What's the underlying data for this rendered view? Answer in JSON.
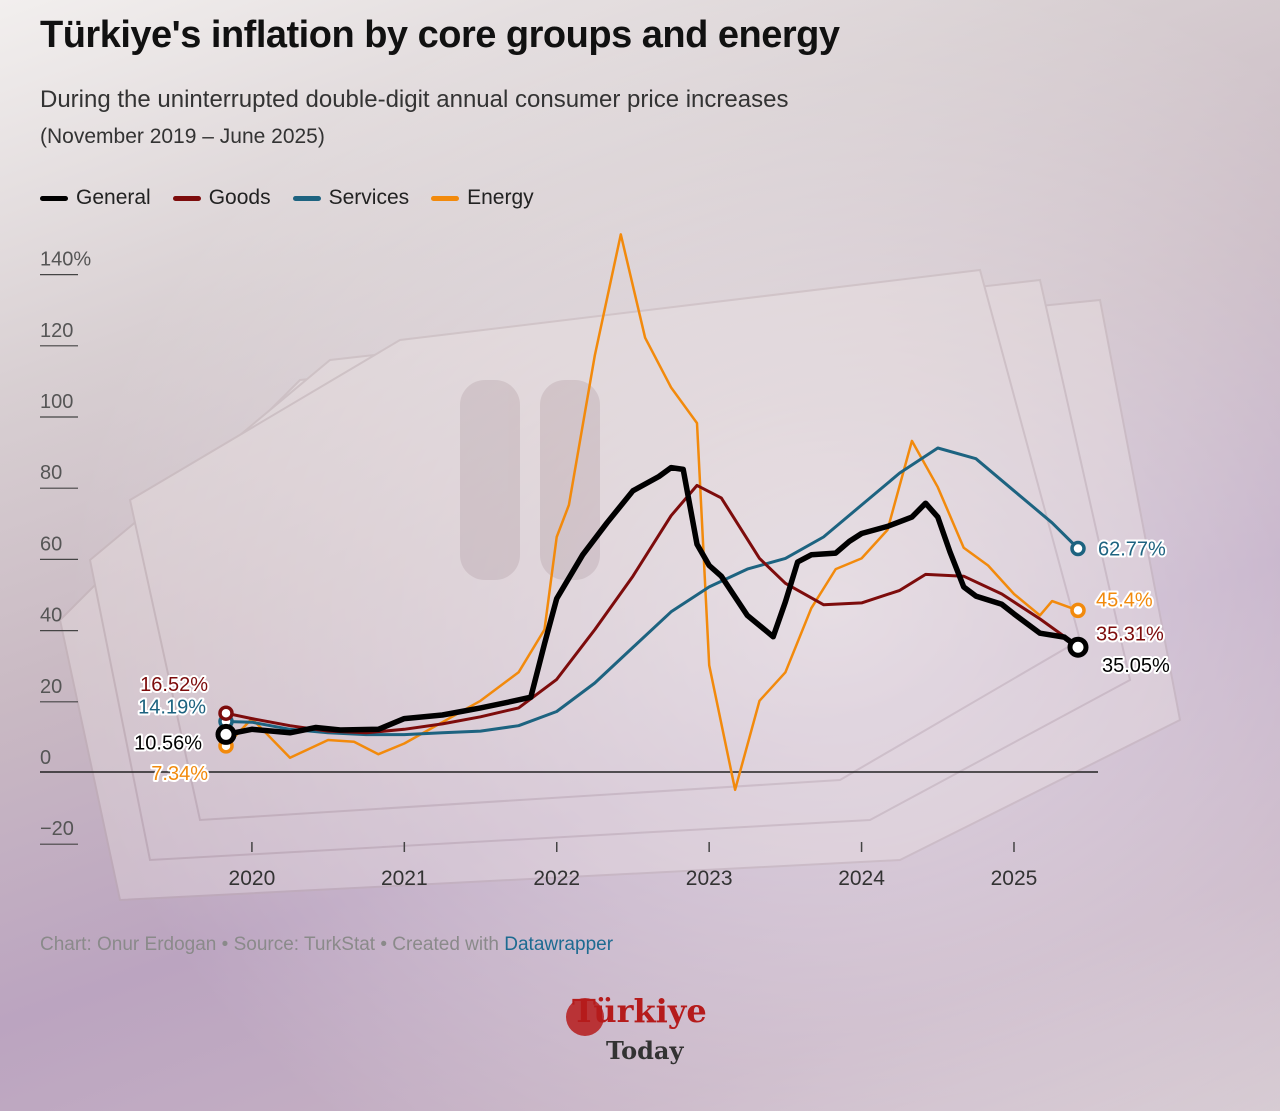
{
  "header": {
    "title": "Türkiye's inflation by core groups and energy",
    "subtitle": "During the uninterrupted double-digit annual consumer price increases",
    "subtitle2": "(November 2019 – June 2025)"
  },
  "legend": [
    {
      "label": "General",
      "color": "#000000"
    },
    {
      "label": "Goods",
      "color": "#7d0c0c"
    },
    {
      "label": "Services",
      "color": "#1d6380"
    },
    {
      "label": "Energy",
      "color": "#f28a0c"
    }
  ],
  "footer": {
    "credit": "Chart: Onur Erdogan • Source: TurkStat • Created with ",
    "link": "Datawrapper"
  },
  "logo": {
    "line1": "Türkiye",
    "line2": "Today"
  },
  "chart_data": {
    "type": "line",
    "y_ticks": [
      "140%",
      "120",
      "100",
      "80",
      "60",
      "40",
      "20",
      "0",
      "−20"
    ],
    "y_tick_values": [
      140,
      120,
      100,
      80,
      60,
      40,
      20,
      0,
      -20
    ],
    "x_ticks": [
      "2020",
      "2021",
      "2022",
      "2023",
      "2024",
      "2025"
    ],
    "x_tick_values": [
      2020,
      2021,
      2022,
      2023,
      2024,
      2025
    ],
    "xlim": [
      2019.83,
      2025.42
    ],
    "ylim": [
      -20,
      145
    ],
    "grid": false,
    "legend_position": "top-left",
    "series": [
      {
        "name": "General",
        "color": "#000000",
        "start_label": "10.56%",
        "end_label": "35.05%",
        "points": [
          [
            2019.83,
            10.56
          ],
          [
            2020.0,
            12
          ],
          [
            2020.25,
            11
          ],
          [
            2020.42,
            12.5
          ],
          [
            2020.58,
            11.8
          ],
          [
            2020.83,
            12
          ],
          [
            2021.0,
            15
          ],
          [
            2021.25,
            16
          ],
          [
            2021.5,
            18
          ],
          [
            2021.67,
            19.5
          ],
          [
            2021.83,
            21
          ],
          [
            2021.92,
            36
          ],
          [
            2022.0,
            48.7
          ],
          [
            2022.17,
            61
          ],
          [
            2022.33,
            70
          ],
          [
            2022.5,
            79
          ],
          [
            2022.67,
            83
          ],
          [
            2022.75,
            85.5
          ],
          [
            2022.83,
            85
          ],
          [
            2022.92,
            64
          ],
          [
            2023.0,
            58
          ],
          [
            2023.08,
            55
          ],
          [
            2023.25,
            44
          ],
          [
            2023.42,
            38
          ],
          [
            2023.5,
            47.8
          ],
          [
            2023.58,
            59
          ],
          [
            2023.67,
            61
          ],
          [
            2023.83,
            61.5
          ],
          [
            2023.92,
            64.8
          ],
          [
            2024.0,
            67
          ],
          [
            2024.17,
            69
          ],
          [
            2024.33,
            71.6
          ],
          [
            2024.42,
            75.5
          ],
          [
            2024.5,
            71.6
          ],
          [
            2024.58,
            61.8
          ],
          [
            2024.67,
            52
          ],
          [
            2024.75,
            49.4
          ],
          [
            2024.92,
            47.1
          ],
          [
            2025.0,
            44.4
          ],
          [
            2025.17,
            39
          ],
          [
            2025.33,
            37.9
          ],
          [
            2025.42,
            35.05
          ]
        ]
      },
      {
        "name": "Goods",
        "color": "#7d0c0c",
        "start_label": "16.52%",
        "end_label": "35.31%",
        "points": [
          [
            2019.83,
            16.52
          ],
          [
            2020.0,
            15
          ],
          [
            2020.25,
            13
          ],
          [
            2020.5,
            11.5
          ],
          [
            2020.75,
            11
          ],
          [
            2021.0,
            12
          ],
          [
            2021.25,
            13.5
          ],
          [
            2021.5,
            15.5
          ],
          [
            2021.75,
            18
          ],
          [
            2022.0,
            26
          ],
          [
            2022.25,
            40
          ],
          [
            2022.5,
            55
          ],
          [
            2022.75,
            72
          ],
          [
            2022.92,
            80.5
          ],
          [
            2023.08,
            77
          ],
          [
            2023.33,
            60
          ],
          [
            2023.5,
            53
          ],
          [
            2023.75,
            47
          ],
          [
            2024.0,
            47.5
          ],
          [
            2024.25,
            51
          ],
          [
            2024.42,
            55.5
          ],
          [
            2024.67,
            55
          ],
          [
            2024.92,
            50
          ],
          [
            2025.17,
            43
          ],
          [
            2025.42,
            35.31
          ]
        ]
      },
      {
        "name": "Services",
        "color": "#1d6380",
        "start_label": "14.19%",
        "end_label": "62.77%",
        "points": [
          [
            2019.83,
            14.19
          ],
          [
            2020.0,
            14
          ],
          [
            2020.25,
            12
          ],
          [
            2020.5,
            11
          ],
          [
            2020.75,
            10.5
          ],
          [
            2021.0,
            10.5
          ],
          [
            2021.25,
            11
          ],
          [
            2021.5,
            11.5
          ],
          [
            2021.75,
            13
          ],
          [
            2022.0,
            17
          ],
          [
            2022.25,
            25
          ],
          [
            2022.5,
            35
          ],
          [
            2022.75,
            45
          ],
          [
            2023.0,
            52
          ],
          [
            2023.25,
            57
          ],
          [
            2023.5,
            60
          ],
          [
            2023.75,
            66
          ],
          [
            2024.0,
            75
          ],
          [
            2024.25,
            84
          ],
          [
            2024.5,
            91
          ],
          [
            2024.75,
            88
          ],
          [
            2025.0,
            79
          ],
          [
            2025.25,
            70
          ],
          [
            2025.42,
            62.77
          ]
        ]
      },
      {
        "name": "Energy",
        "color": "#f28a0c",
        "start_label": "7.34%",
        "end_label": "45.4%",
        "points": [
          [
            2019.83,
            7.34
          ],
          [
            2020.0,
            15
          ],
          [
            2020.25,
            4
          ],
          [
            2020.5,
            9
          ],
          [
            2020.67,
            8.5
          ],
          [
            2020.83,
            5
          ],
          [
            2021.0,
            8
          ],
          [
            2021.25,
            14
          ],
          [
            2021.5,
            20
          ],
          [
            2021.75,
            28
          ],
          [
            2021.92,
            40
          ],
          [
            2022.0,
            66
          ],
          [
            2022.08,
            75
          ],
          [
            2022.25,
            117
          ],
          [
            2022.42,
            151
          ],
          [
            2022.58,
            122
          ],
          [
            2022.75,
            108
          ],
          [
            2022.92,
            98
          ],
          [
            2023.0,
            30
          ],
          [
            2023.17,
            -5
          ],
          [
            2023.33,
            20
          ],
          [
            2023.5,
            28
          ],
          [
            2023.67,
            46
          ],
          [
            2023.83,
            57
          ],
          [
            2024.0,
            60
          ],
          [
            2024.17,
            68
          ],
          [
            2024.33,
            93
          ],
          [
            2024.5,
            80
          ],
          [
            2024.67,
            63
          ],
          [
            2024.83,
            58
          ],
          [
            2025.0,
            50
          ],
          [
            2025.17,
            44
          ],
          [
            2025.25,
            48
          ],
          [
            2025.42,
            45.4
          ]
        ]
      }
    ]
  }
}
